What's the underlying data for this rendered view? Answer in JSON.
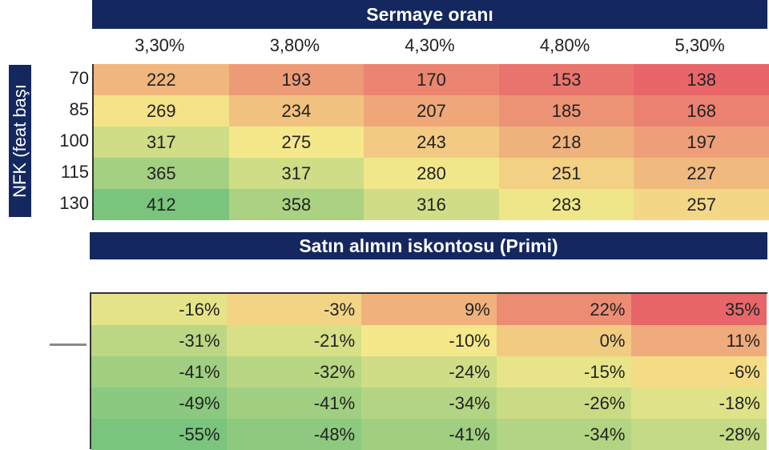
{
  "header": {
    "title": "Sermaye oranı"
  },
  "columns": [
    "3,30%",
    "3,80%",
    "4,30%",
    "4,80%",
    "5,30%"
  ],
  "row_axis_label": "NFK (feat başı",
  "rows": [
    "70",
    "85",
    "100",
    "115",
    "130"
  ],
  "table": {
    "rows": [
      [
        "222",
        "193",
        "170",
        "153",
        "138"
      ],
      [
        "269",
        "234",
        "207",
        "185",
        "168"
      ],
      [
        "317",
        "275",
        "243",
        "218",
        "197"
      ],
      [
        "365",
        "317",
        "280",
        "251",
        "227"
      ],
      [
        "412",
        "358",
        "316",
        "283",
        "257"
      ]
    ]
  },
  "discount_header": {
    "title": "Satın alımın iskontosu (Primi)"
  },
  "discount_table": {
    "rows": [
      [
        "-16%",
        "-3%",
        "9%",
        "22%",
        "35%"
      ],
      [
        "-31%",
        "-21%",
        "-10%",
        "0%",
        "11%"
      ],
      [
        "-41%",
        "-32%",
        "-24%",
        "-15%",
        "-6%"
      ],
      [
        "-49%",
        "-41%",
        "-34%",
        "-26%",
        "-18%"
      ],
      [
        "-55%",
        "-48%",
        "-41%",
        "-34%",
        "-28%"
      ]
    ]
  }
}
